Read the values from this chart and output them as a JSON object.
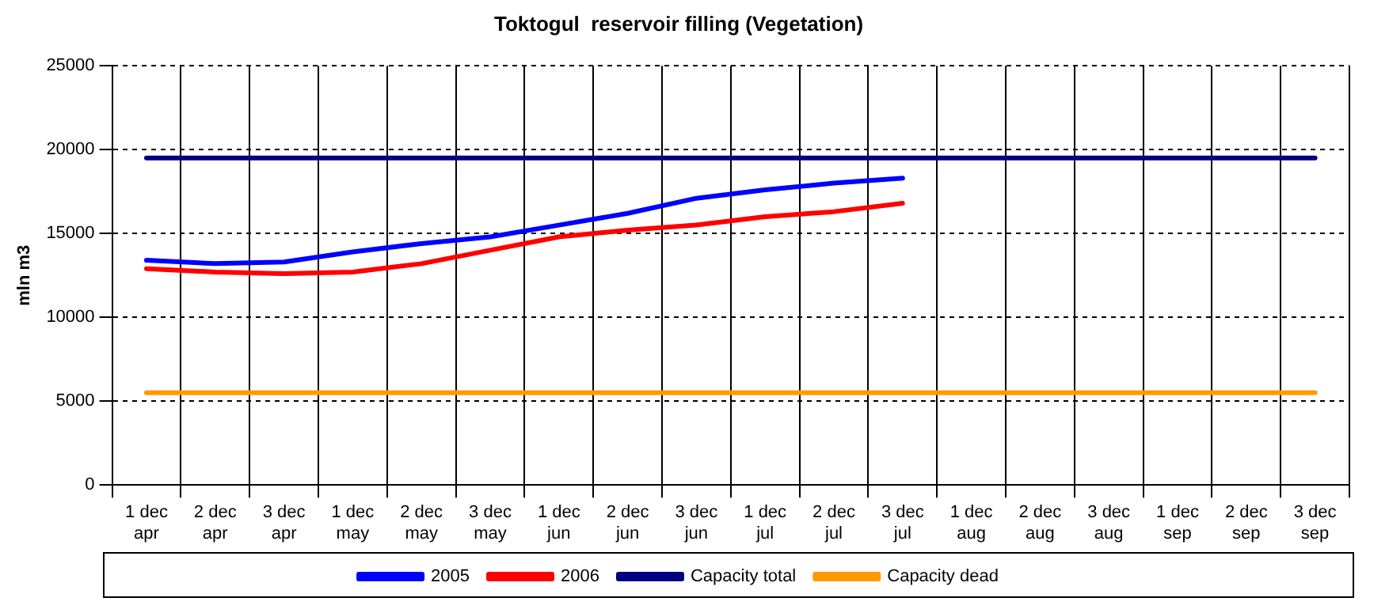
{
  "chart_data": {
    "type": "line",
    "title": "Toktogul  reservoir filling (Vegetation)",
    "ylabel": "mln m3",
    "categories": [
      "1 dec\napr",
      "2 dec\napr",
      "3 dec\napr",
      "1 dec\nmay",
      "2 dec\nmay",
      "3 dec\nmay",
      "1 dec\njun",
      "2 dec\njun",
      "3 dec\njun",
      "1 dec\njul",
      "2 dec\njul",
      "3 dec\njul",
      "1 dec\naug",
      "2 dec\naug",
      "3 dec\naug",
      "1 dec\nsep",
      "2 dec\nsep",
      "3 dec\nsep"
    ],
    "series": [
      {
        "name": "2005",
        "color": "#0000ff",
        "values": [
          13400,
          13200,
          13300,
          13900,
          14400,
          14800,
          15500,
          16200,
          17100,
          17600,
          18000,
          18300,
          null,
          null,
          null,
          null,
          null,
          null
        ]
      },
      {
        "name": "2006",
        "color": "#ff0000",
        "values": [
          12900,
          12700,
          12600,
          12700,
          13200,
          14000,
          14800,
          15200,
          15500,
          16000,
          16300,
          16800,
          null,
          null,
          null,
          null,
          null,
          null
        ]
      },
      {
        "name": "Capacity total",
        "color": "#000080",
        "values": [
          19500,
          19500,
          19500,
          19500,
          19500,
          19500,
          19500,
          19500,
          19500,
          19500,
          19500,
          19500,
          19500,
          19500,
          19500,
          19500,
          19500,
          19500
        ]
      },
      {
        "name": "Capacity dead",
        "color": "#ff9900",
        "values": [
          5500,
          5500,
          5500,
          5500,
          5500,
          5500,
          5500,
          5500,
          5500,
          5500,
          5500,
          5500,
          5500,
          5500,
          5500,
          5500,
          5500,
          5500
        ]
      }
    ],
    "ylim": [
      0,
      25000
    ],
    "yticks": [
      0,
      5000,
      10000,
      15000,
      20000,
      25000
    ],
    "grid": true,
    "legend": "bottom",
    "marker": "none",
    "line_style": "solid"
  }
}
